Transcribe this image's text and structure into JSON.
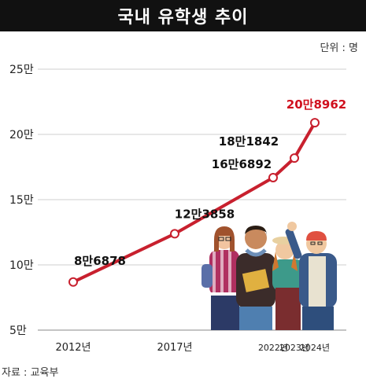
{
  "title": "국내 유학생 추이",
  "unit_label": "단위 : 명",
  "source": "자료 : 교육부",
  "colors": {
    "line": "#c8202e",
    "accent_text": "#d0101e",
    "header_bg": "#111111",
    "grid": "#cfcfcf"
  },
  "illustration": "group-of-students-illustration",
  "chart_data": {
    "type": "line",
    "x": [
      "2012년",
      "2017년",
      "2022년",
      "2023년",
      "2024년"
    ],
    "y_tick_labels": [
      "5만",
      "10만",
      "15만",
      "20만",
      "25만"
    ],
    "y_ticks": [
      50000,
      100000,
      150000,
      200000,
      250000
    ],
    "ylim": [
      50000,
      250000
    ],
    "grid": true,
    "series": [
      {
        "values": [
          86878,
          123858,
          166892,
          181842,
          208962
        ],
        "labels": [
          "8만6878",
          "12만3858",
          "16만6892",
          "18만1842",
          "20만8962"
        ]
      }
    ]
  }
}
